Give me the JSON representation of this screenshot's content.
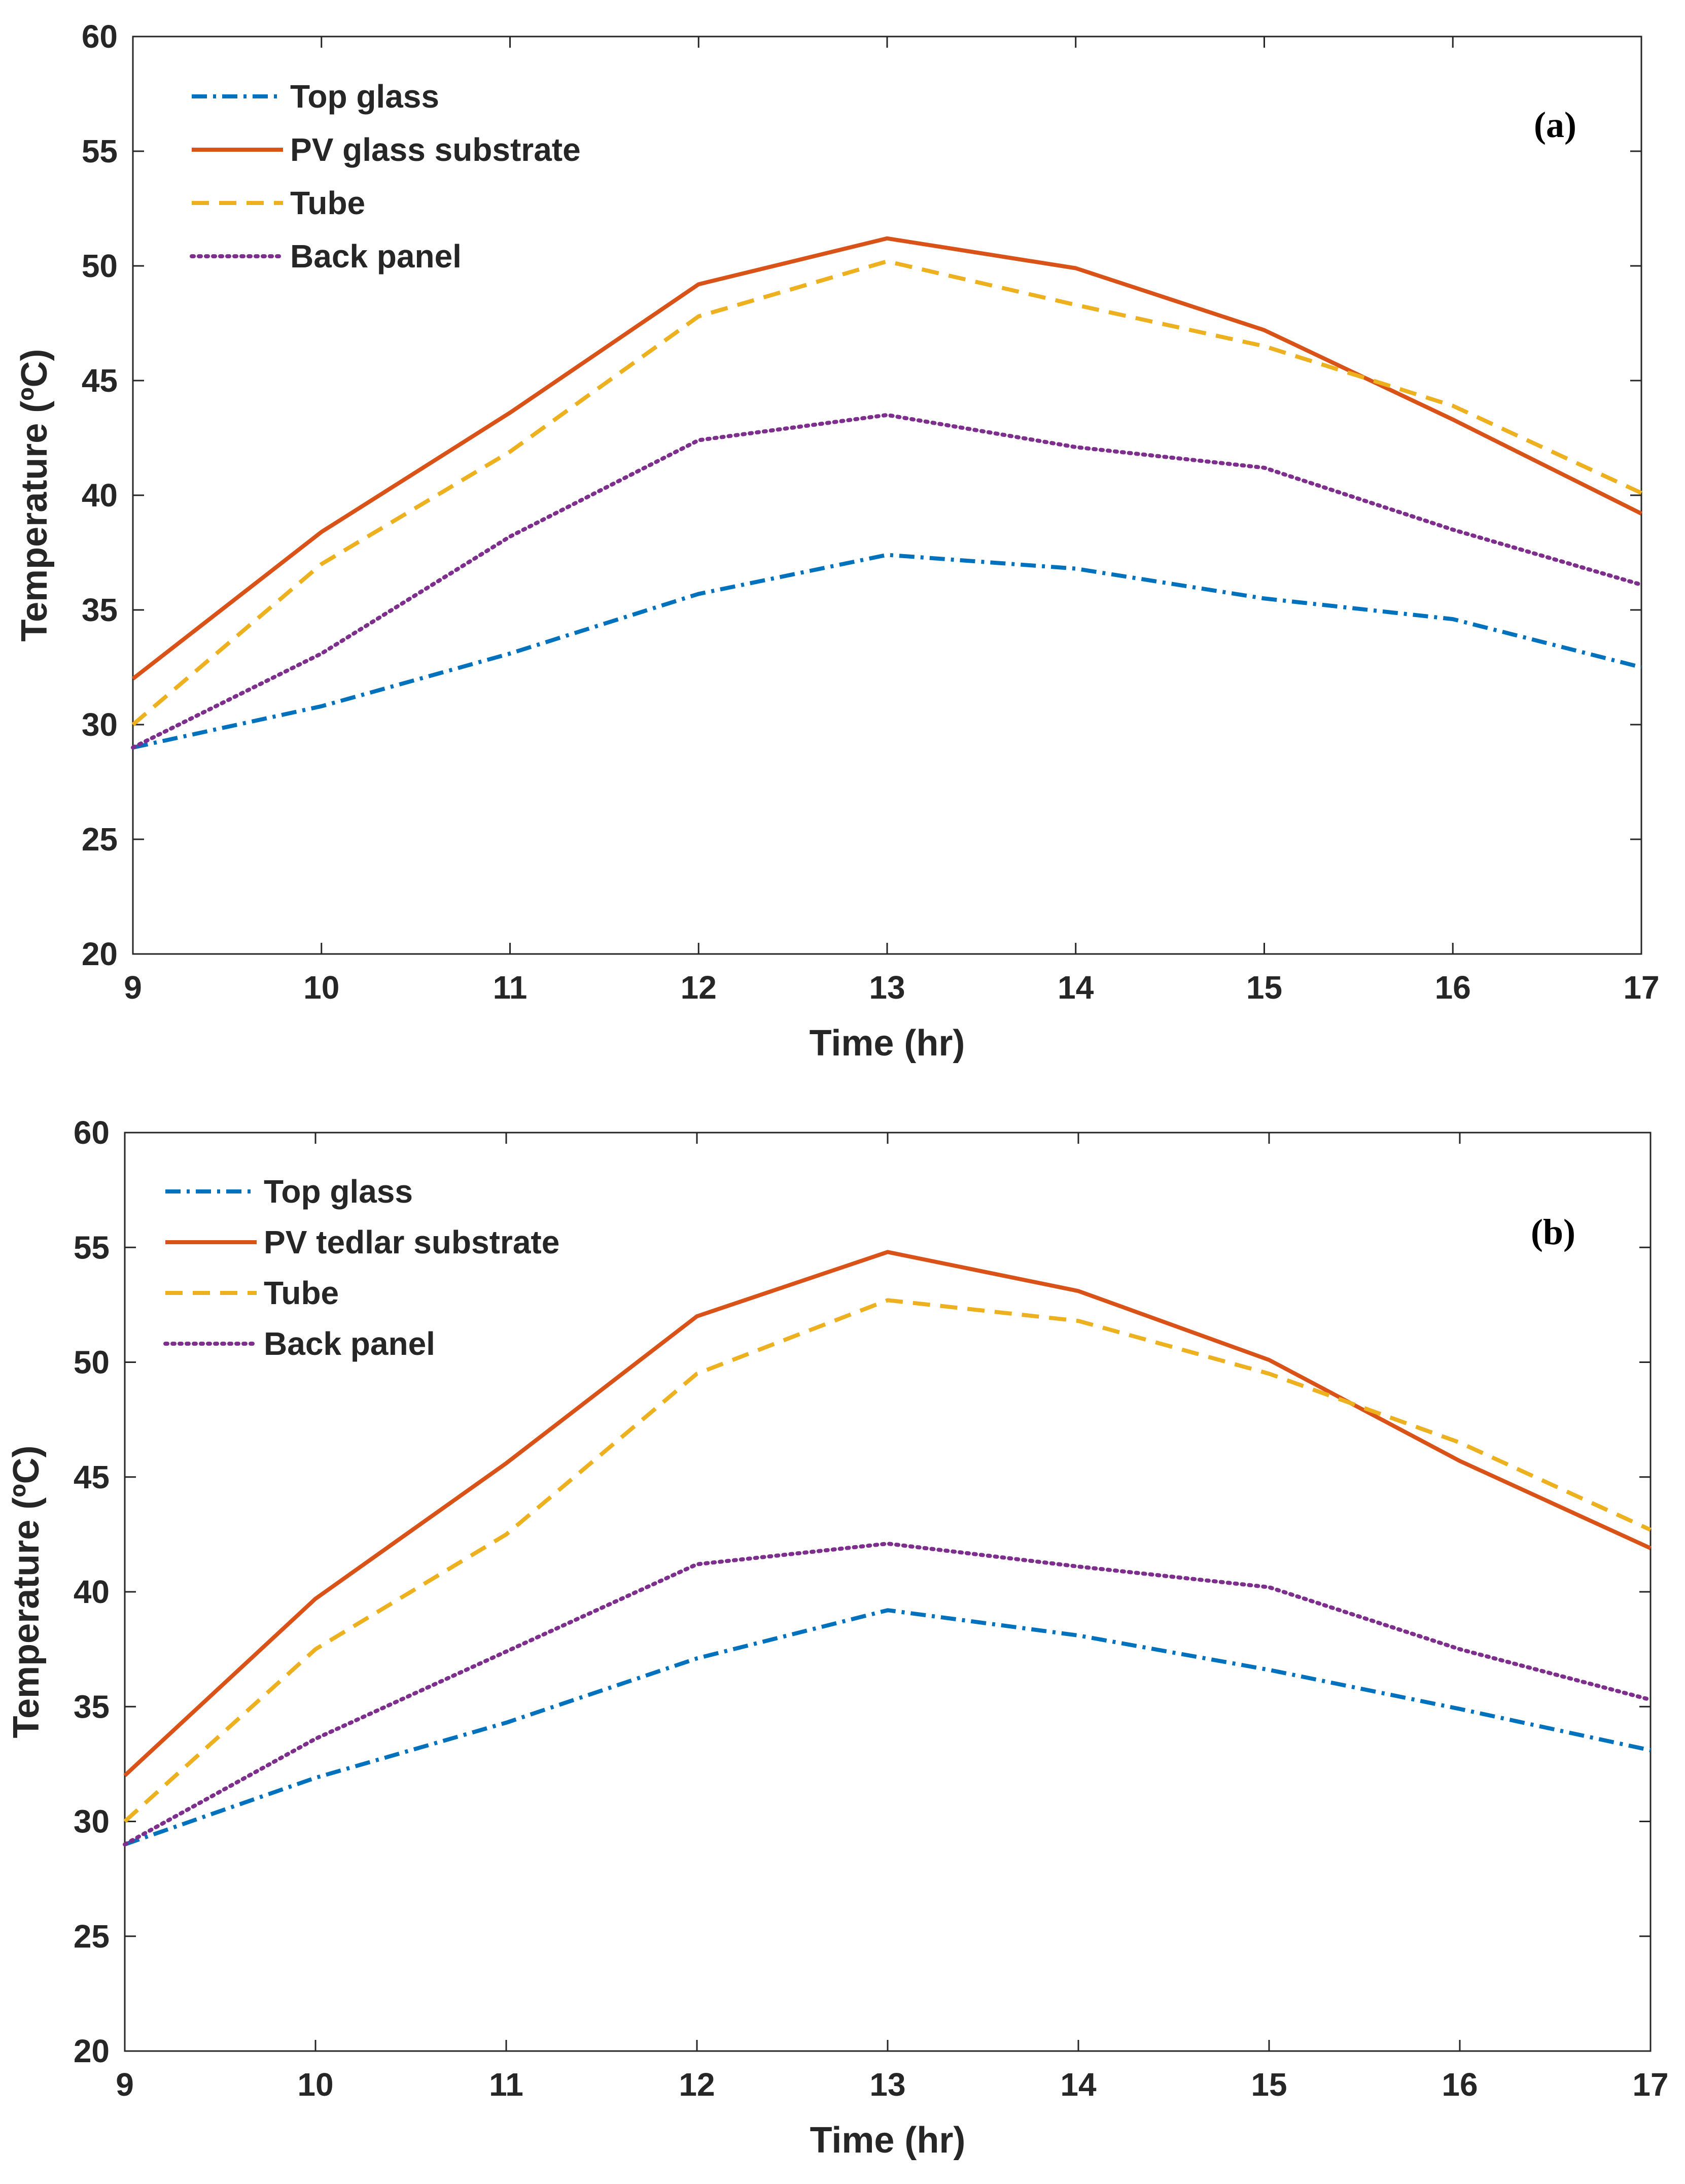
{
  "chart_data": [
    {
      "type": "line",
      "panel_label": "(a)",
      "xlabel": "Time (hr)",
      "ylabel": "Temperature (ºC)",
      "xlim": [
        9,
        17
      ],
      "ylim": [
        20,
        60
      ],
      "xticks": [
        "9",
        "10",
        "11",
        "12",
        "13",
        "14",
        "15",
        "16",
        "17"
      ],
      "yticks": [
        "20",
        "25",
        "30",
        "35",
        "40",
        "45",
        "50",
        "55",
        "60"
      ],
      "x": [
        9,
        10,
        11,
        12,
        13,
        14,
        15,
        16,
        17
      ],
      "legend_position": "top-left",
      "series": [
        {
          "name": "Top glass",
          "style": "dashdot",
          "color": "#0072BD",
          "values": [
            29.0,
            30.8,
            33.1,
            35.7,
            37.4,
            36.8,
            35.5,
            34.6,
            32.5
          ]
        },
        {
          "name": "PV glass substrate",
          "style": "solid",
          "color": "#D95319",
          "values": [
            32.0,
            38.4,
            43.6,
            49.2,
            51.2,
            49.9,
            47.2,
            43.3,
            39.2
          ]
        },
        {
          "name": "Tube",
          "style": "dashed",
          "color": "#EDB120",
          "values": [
            30.0,
            37.0,
            41.9,
            47.8,
            50.2,
            48.3,
            46.5,
            43.9,
            40.1
          ]
        },
        {
          "name": "Back panel",
          "style": "dotted",
          "color": "#7E2F8E",
          "values": [
            29.0,
            33.1,
            38.2,
            42.4,
            43.5,
            42.1,
            41.2,
            38.5,
            36.1
          ]
        }
      ]
    },
    {
      "type": "line",
      "panel_label": "(b)",
      "xlabel": "Time (hr)",
      "ylabel": "Temperature (ºC)",
      "xlim": [
        9,
        17
      ],
      "ylim": [
        20,
        60
      ],
      "xticks": [
        "9",
        "10",
        "11",
        "12",
        "13",
        "14",
        "15",
        "16",
        "17"
      ],
      "yticks": [
        "20",
        "25",
        "30",
        "35",
        "40",
        "45",
        "50",
        "55",
        "60"
      ],
      "x": [
        9,
        10,
        11,
        12,
        13,
        14,
        15,
        16,
        17
      ],
      "legend_position": "top-left",
      "series": [
        {
          "name": "Top glass",
          "style": "dashdot",
          "color": "#0072BD",
          "values": [
            29.0,
            31.9,
            34.3,
            37.1,
            39.2,
            38.1,
            36.6,
            34.9,
            33.1
          ]
        },
        {
          "name": "PV tedlar substrate",
          "style": "solid",
          "color": "#D95319",
          "values": [
            32.0,
            39.7,
            45.6,
            52.0,
            54.8,
            53.1,
            50.1,
            45.7,
            41.9
          ]
        },
        {
          "name": "Tube",
          "style": "dashed",
          "color": "#EDB120",
          "values": [
            30.0,
            37.5,
            42.5,
            49.5,
            52.7,
            51.8,
            49.5,
            46.5,
            42.7
          ]
        },
        {
          "name": "Back panel",
          "style": "dotted",
          "color": "#7E2F8E",
          "values": [
            29.0,
            33.6,
            37.4,
            41.2,
            42.1,
            41.1,
            40.2,
            37.5,
            35.3
          ]
        }
      ]
    }
  ]
}
